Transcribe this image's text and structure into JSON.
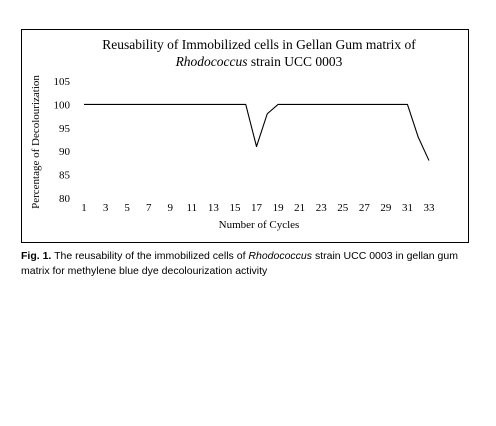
{
  "chart_data": {
    "type": "line",
    "title_line1": "Reusability of Immobilized cells in Gellan Gum matrix of",
    "title_line2_italic": "Rhodococcus",
    "title_line2_rest": " strain UCC 0003",
    "xlabel": "Number of Cycles",
    "ylabel": "Percentage of Decolourization",
    "x": [
      1,
      2,
      3,
      4,
      5,
      6,
      7,
      8,
      9,
      10,
      11,
      12,
      13,
      14,
      15,
      16,
      17,
      18,
      19,
      20,
      21,
      22,
      23,
      24,
      25,
      26,
      27,
      28,
      29,
      30,
      31,
      32,
      33
    ],
    "values": [
      100,
      100,
      100,
      100,
      100,
      100,
      100,
      100,
      100,
      100,
      100,
      100,
      100,
      100,
      100,
      100,
      91,
      98,
      100,
      100,
      100,
      100,
      100,
      100,
      100,
      100,
      100,
      100,
      100,
      100,
      100,
      93,
      88
    ],
    "xticks": [
      "1",
      "3",
      "5",
      "7",
      "9",
      "11",
      "13",
      "15",
      "17",
      "19",
      "21",
      "23",
      "25",
      "27",
      "29",
      "31",
      "33"
    ],
    "yticks": [
      "80",
      "85",
      "90",
      "95",
      "100",
      "105"
    ],
    "xlim": [
      1,
      33
    ],
    "ylim": [
      80,
      105
    ],
    "grid": false,
    "line_color": "#000000"
  },
  "caption": {
    "fig_label": "Fig. 1.",
    "text_before": " The reusability of the immobilized cells of ",
    "text_italic": "Rhodococcus",
    "text_after": " strain UCC 0003 in gellan gum matrix for methylene blue dye decolourization activity"
  }
}
